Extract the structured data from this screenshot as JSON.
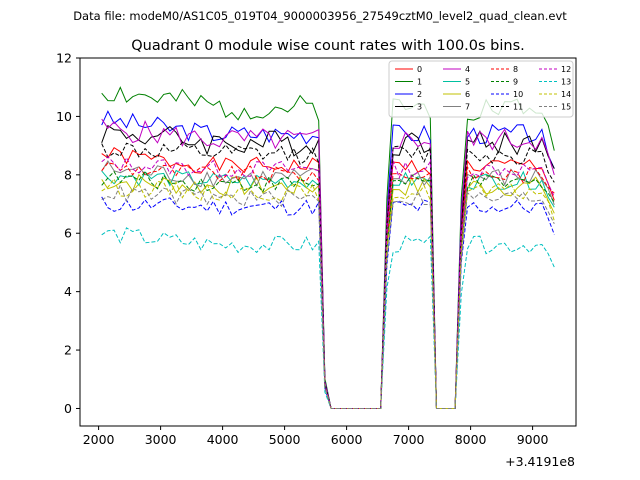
{
  "chart_data": {
    "type": "line",
    "suptitle": "Data file: modeM0/AS1C05_019T04_9000003956_27549cztM0_level2_quad_clean.evt",
    "title": "Quadrant 0 module wise count rates with 100.0s bins.",
    "xlabel": "",
    "ylabel": "",
    "x_offset_label": "+3.4191e8",
    "xlim": [
      1700,
      9700
    ],
    "ylim": [
      -0.6,
      12
    ],
    "xticks": [
      2000,
      3000,
      4000,
      5000,
      6000,
      7000,
      8000,
      9000
    ],
    "yticks": [
      0,
      2,
      4,
      6,
      8,
      10,
      12
    ],
    "x_start": 2050,
    "x_step": 100,
    "x_end": 9350,
    "gaps": [
      {
        "start": 5750,
        "end": 6550,
        "value": 0
      },
      {
        "start": 7450,
        "end": 7750,
        "value": 0
      }
    ],
    "series": [
      {
        "name": "0",
        "color": "#ff0000",
        "dash": "solid",
        "mean": 8.3,
        "amp": 0.3,
        "seed": 1,
        "start_level": 8.7,
        "end_level": 7.1
      },
      {
        "name": "1",
        "color": "#008000",
        "dash": "solid",
        "mean": 10.3,
        "amp": 0.45,
        "seed": 2,
        "start_level": 10.9,
        "end_level": 8.8
      },
      {
        "name": "2",
        "color": "#0000ff",
        "dash": "solid",
        "mean": 9.4,
        "amp": 0.35,
        "seed": 3,
        "start_level": 9.9,
        "end_level": 8.2
      },
      {
        "name": "3",
        "color": "#000000",
        "dash": "solid",
        "mean": 9.1,
        "amp": 0.45,
        "seed": 4,
        "start_level": 9.5,
        "end_level": 8.2
      },
      {
        "name": "4",
        "color": "#c000c0",
        "dash": "solid",
        "mean": 9.2,
        "amp": 0.4,
        "seed": 5,
        "start_level": 9.6,
        "end_level": 8.0
      },
      {
        "name": "5",
        "color": "#00c0a0",
        "dash": "solid",
        "mean": 7.8,
        "amp": 0.3,
        "seed": 6,
        "start_level": 8.0,
        "end_level": 6.9
      },
      {
        "name": "6",
        "color": "#c0c000",
        "dash": "solid",
        "mean": 7.6,
        "amp": 0.35,
        "seed": 7,
        "start_level": 7.8,
        "end_level": 6.7
      },
      {
        "name": "7",
        "color": "#808080",
        "dash": "solid",
        "mean": 7.9,
        "amp": 0.35,
        "seed": 8,
        "start_level": 8.2,
        "end_level": 7.0
      },
      {
        "name": "8",
        "color": "#ff0000",
        "dash": "dashed",
        "mean": 8.0,
        "amp": 0.3,
        "seed": 9,
        "start_level": 8.3,
        "end_level": 7.4
      },
      {
        "name": "9",
        "color": "#008000",
        "dash": "dashed",
        "mean": 7.7,
        "amp": 0.3,
        "seed": 10,
        "start_level": 7.9,
        "end_level": 7.1
      },
      {
        "name": "10",
        "color": "#0000ff",
        "dash": "dashed",
        "mean": 6.9,
        "amp": 0.3,
        "seed": 11,
        "start_level": 7.0,
        "end_level": 6.0
      },
      {
        "name": "11",
        "color": "#000000",
        "dash": "dashed",
        "mean": 8.7,
        "amp": 0.35,
        "seed": 12,
        "start_level": 8.9,
        "end_level": 7.8
      },
      {
        "name": "12",
        "color": "#c000c0",
        "dash": "dashed",
        "mean": 8.2,
        "amp": 0.3,
        "seed": 13,
        "start_level": 8.4,
        "end_level": 7.3
      },
      {
        "name": "13",
        "color": "#00c0c0",
        "dash": "dashed",
        "mean": 5.6,
        "amp": 0.3,
        "seed": 14,
        "start_level": 6.0,
        "end_level": 4.9
      },
      {
        "name": "14",
        "color": "#c0c000",
        "dash": "dashed",
        "mean": 7.4,
        "amp": 0.3,
        "seed": 15,
        "start_level": 7.6,
        "end_level": 6.5
      },
      {
        "name": "15",
        "color": "#808080",
        "dash": "dashed",
        "mean": 7.2,
        "amp": 0.3,
        "seed": 16,
        "start_level": 7.4,
        "end_level": 6.4
      }
    ],
    "legend_position": "top-right"
  }
}
